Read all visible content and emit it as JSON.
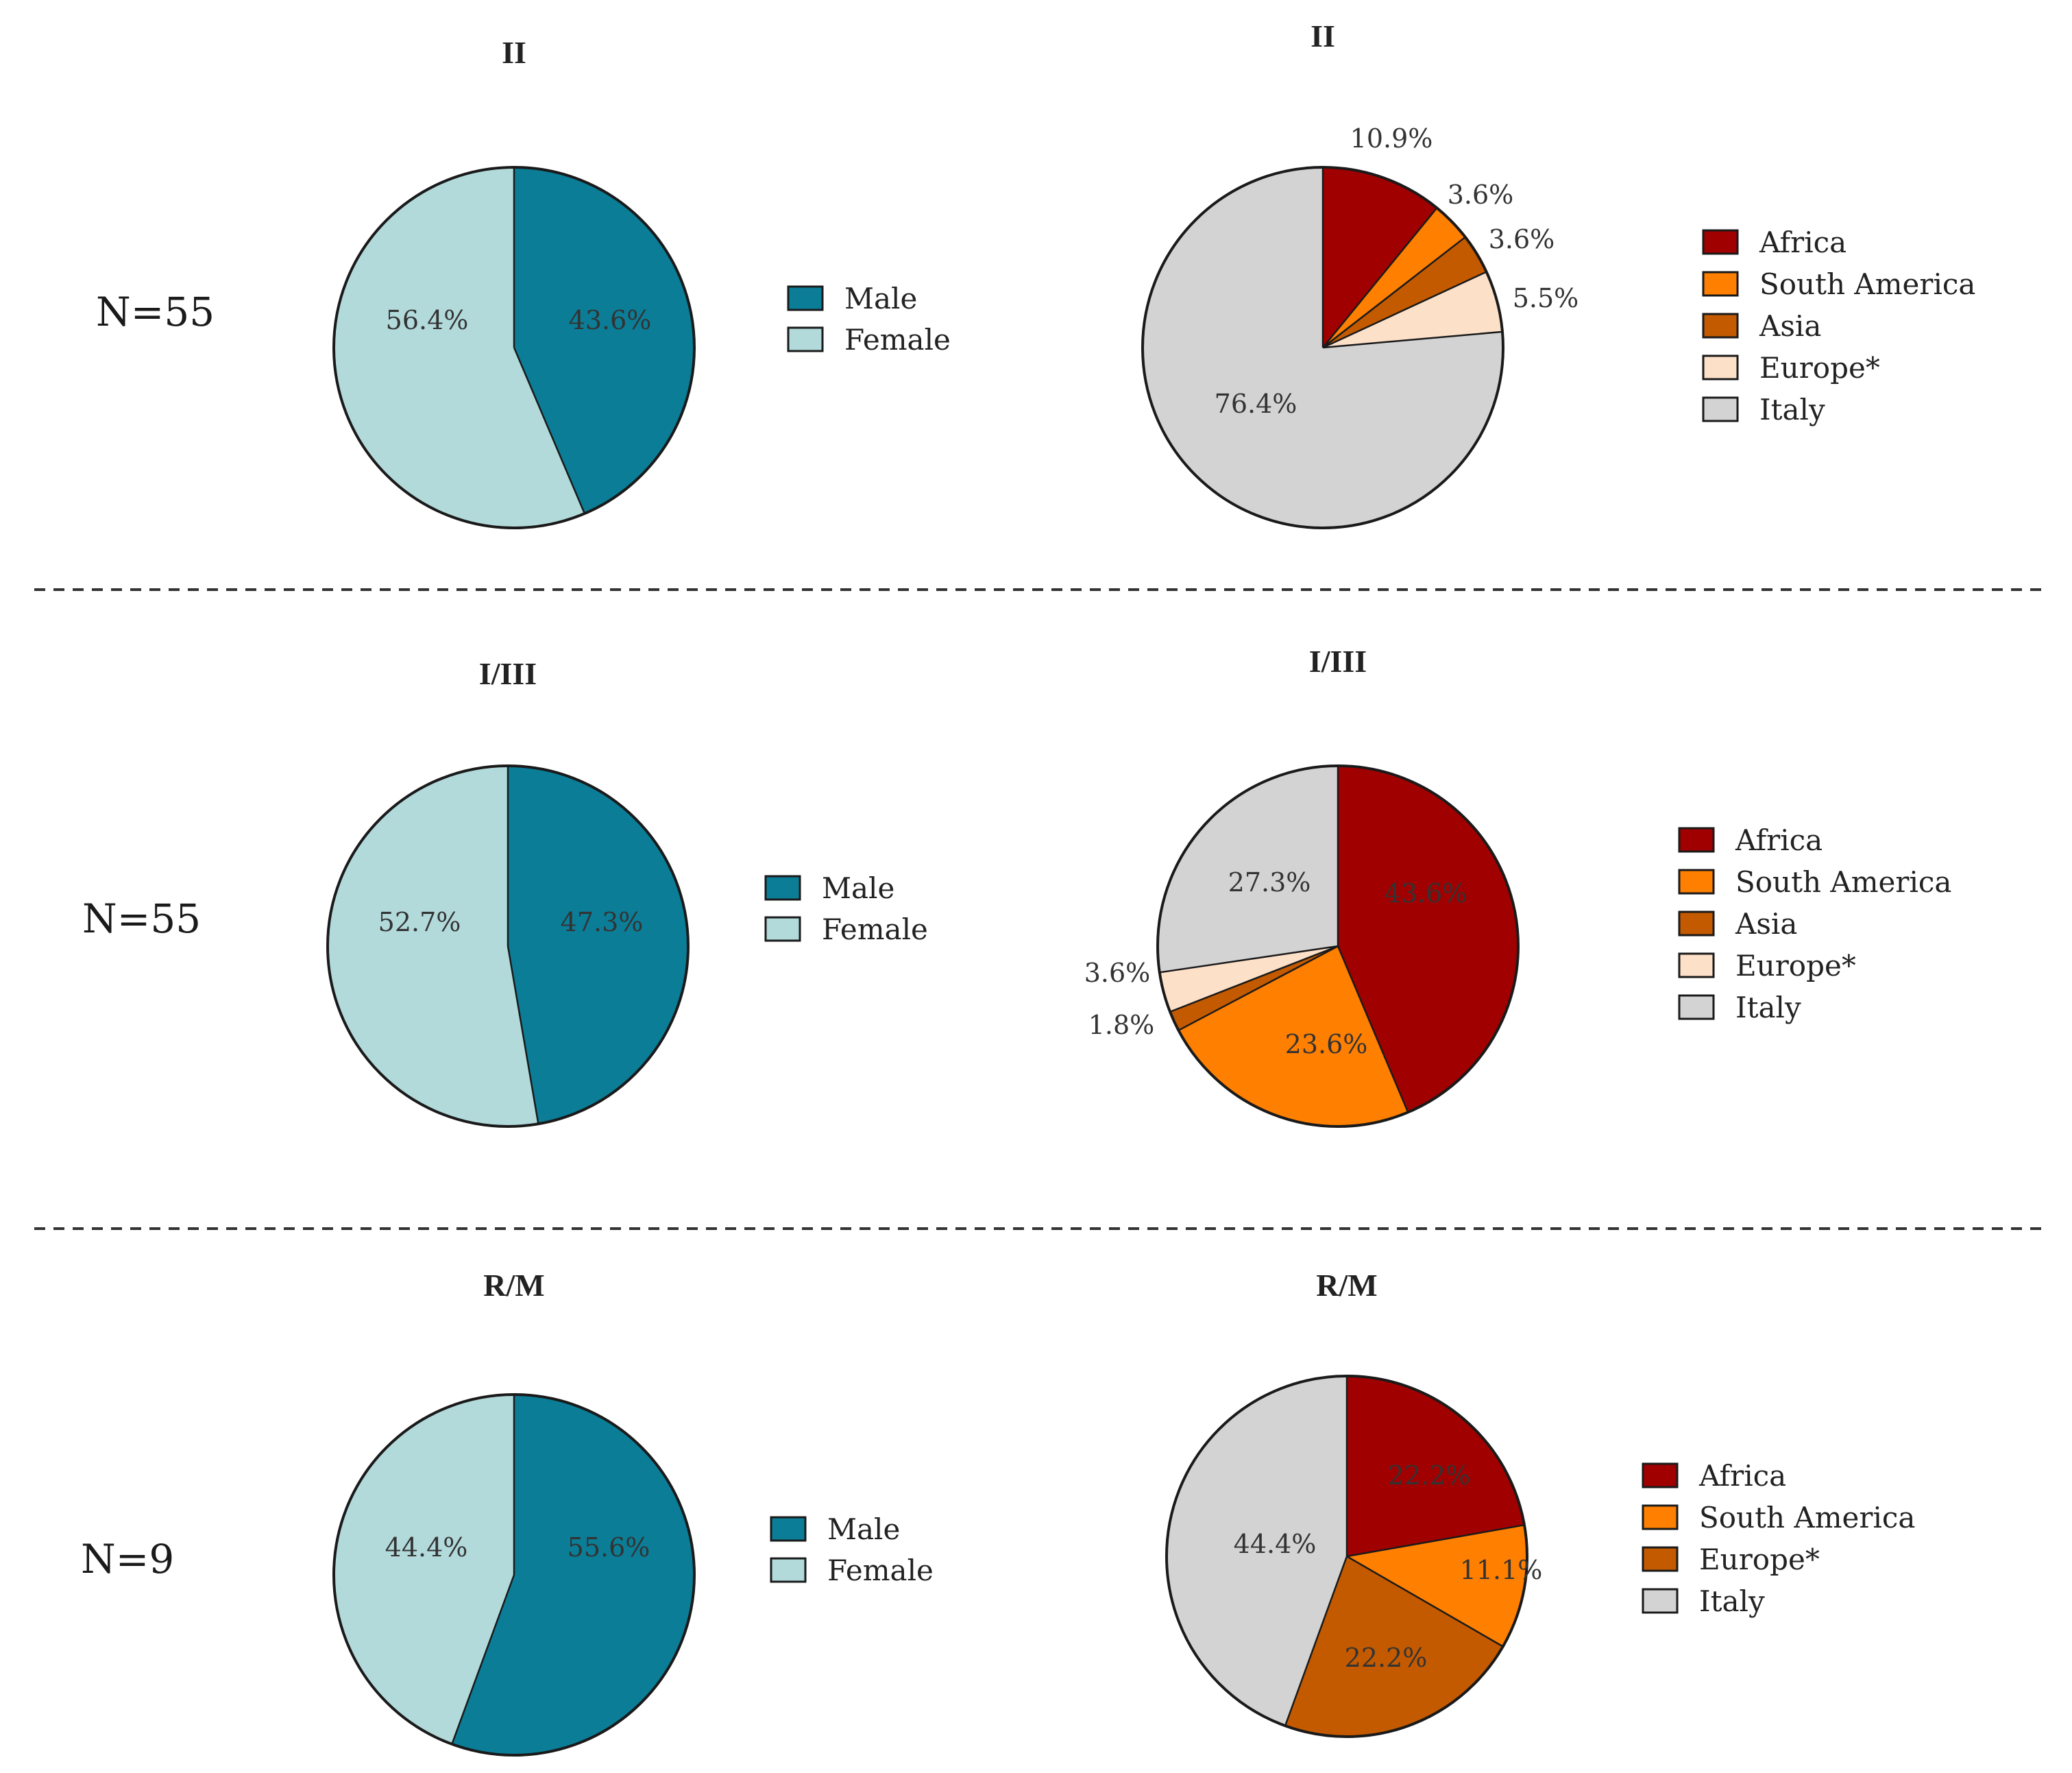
{
  "chart_data": [
    {
      "type": "pie",
      "group": "II",
      "title": "II",
      "n_label": "N=55",
      "variable": "sex",
      "slices": [
        {
          "label": "Male",
          "value": 43.6,
          "display": "43.6%",
          "color": "#0b7d97"
        },
        {
          "label": "Female",
          "value": 56.4,
          "display": "56.4%",
          "color": "#b3dadb"
        }
      ]
    },
    {
      "type": "pie",
      "group": "II",
      "title": "II",
      "variable": "origin",
      "slices": [
        {
          "label": "Africa",
          "value": 10.9,
          "display": "10.9%",
          "color": "#a10000"
        },
        {
          "label": "South America",
          "value": 3.6,
          "display": "3.6%",
          "color": "#ff7f00"
        },
        {
          "label": "Asia",
          "value": 3.6,
          "display": "3.6%",
          "color": "#c45a00"
        },
        {
          "label": "Europe*",
          "value": 5.5,
          "display": "5.5%",
          "color": "#fde0c8"
        },
        {
          "label": "Italy",
          "value": 76.4,
          "display": "76.4%",
          "color": "#d3d3d3"
        }
      ]
    },
    {
      "type": "pie",
      "group": "I/III",
      "title": "I/III",
      "n_label": "N=55",
      "variable": "sex",
      "slices": [
        {
          "label": "Male",
          "value": 47.3,
          "display": "47.3%",
          "color": "#0b7d97"
        },
        {
          "label": "Female",
          "value": 52.7,
          "display": "52.7%",
          "color": "#b3dadb"
        }
      ]
    },
    {
      "type": "pie",
      "group": "I/III",
      "title": "I/III",
      "variable": "origin",
      "slices": [
        {
          "label": "Africa",
          "value": 43.6,
          "display": "43.6%",
          "color": "#a10000"
        },
        {
          "label": "South America",
          "value": 23.6,
          "display": "23.6%",
          "color": "#ff7f00"
        },
        {
          "label": "Asia",
          "value": 1.8,
          "display": "1.8%",
          "color": "#c45a00"
        },
        {
          "label": "Europe*",
          "value": 3.6,
          "display": "3.6%",
          "color": "#fde0c8"
        },
        {
          "label": "Italy",
          "value": 27.3,
          "display": "27.3%",
          "color": "#d3d3d3"
        }
      ]
    },
    {
      "type": "pie",
      "group": "R/M",
      "title": "R/M",
      "n_label": "N=9",
      "variable": "sex",
      "slices": [
        {
          "label": "Male",
          "value": 55.6,
          "display": "55.6%",
          "color": "#0b7d97"
        },
        {
          "label": "Female",
          "value": 44.4,
          "display": "44.4%",
          "color": "#b3dadb"
        }
      ]
    },
    {
      "type": "pie",
      "group": "R/M",
      "title": "R/M",
      "variable": "origin",
      "slices": [
        {
          "label": "Africa",
          "value": 22.2,
          "display": "22.2%",
          "color": "#a10000"
        },
        {
          "label": "South America",
          "value": 11.1,
          "display": "11.1%",
          "color": "#ff7f00"
        },
        {
          "label": "Europe*",
          "value": 22.2,
          "display": "22.2%",
          "color": "#c45a00"
        },
        {
          "label": "Italy",
          "value": 44.4,
          "display": "44.4%",
          "color": "#d3d3d3"
        }
      ]
    }
  ]
}
